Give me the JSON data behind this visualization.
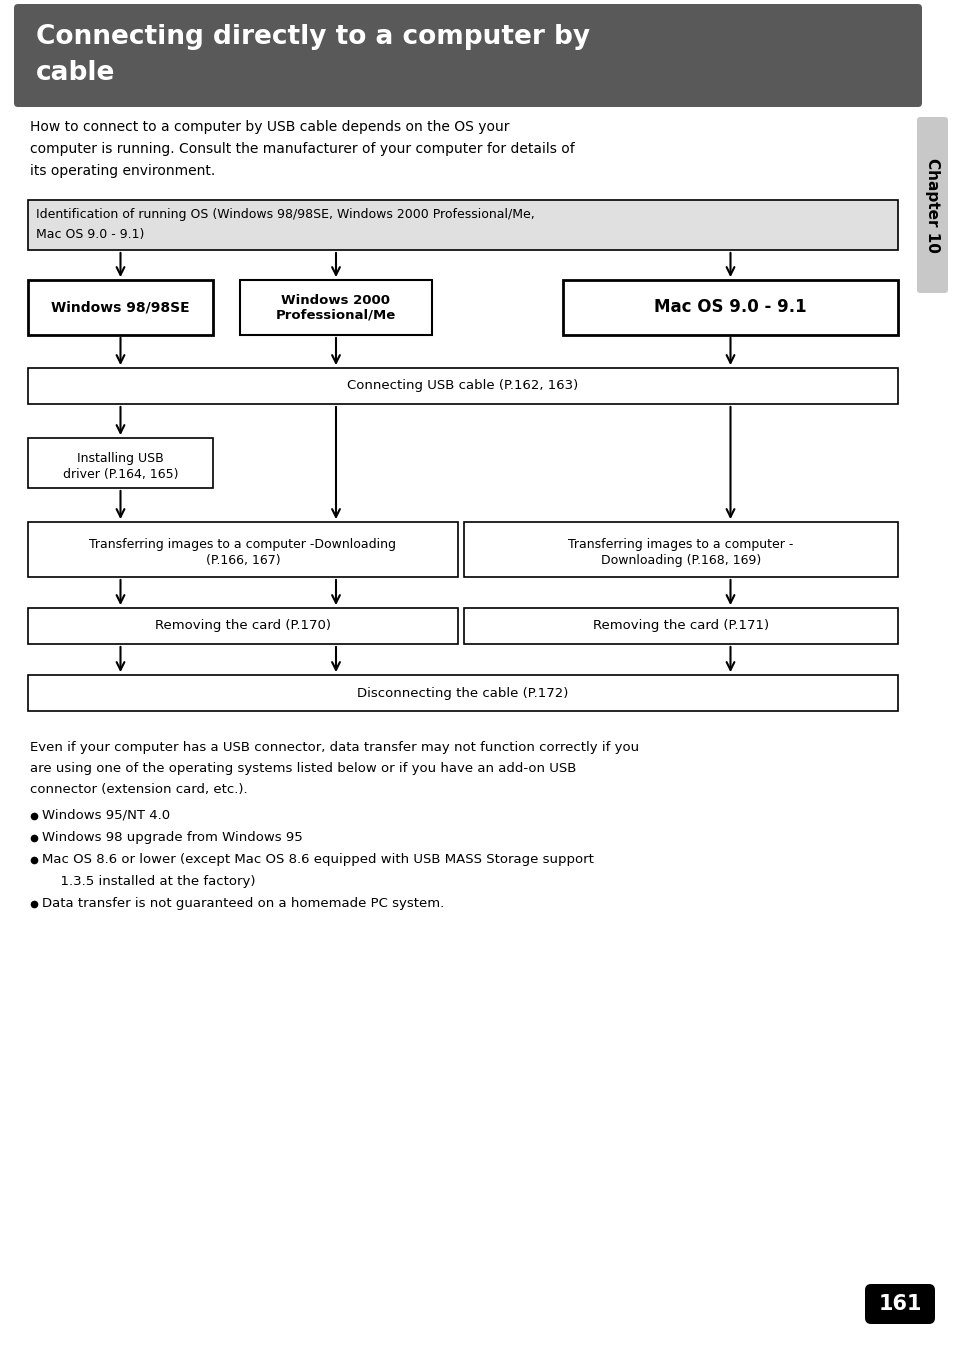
{
  "title_line1": "Connecting directly to a computer by",
  "title_line2": "cable",
  "title_bg": "#595959",
  "title_fg": "#ffffff",
  "page_bg": "#ffffff",
  "intro_line1": "How to connect to a computer by USB cable depends on the OS your",
  "intro_line2": "computer is running. Consult the manufacturer of your computer for details of",
  "intro_line3": "its operating environment.",
  "chapter_label": "Chapter 10",
  "page_number": "161",
  "id_box_line1": "Identification of running OS (Windows 98/98SE, Windows 2000 Professional/Me,",
  "id_box_line2": "Mac OS 9.0 - 9.1)",
  "box_win98": "Windows 98/98SE",
  "box_win2000": "Windows 2000\nProfessional/Me",
  "box_macos": "Mac OS 9.0 - 9.1",
  "box_usb": "Connecting USB cable (P.162, 163)",
  "box_install_line1": "Installing USB",
  "box_install_line2": "driver (P.164, 165)",
  "box_transfer_left_line1": "Transferring images to a computer -Downloading",
  "box_transfer_left_line2": "(P.166, 167)",
  "box_transfer_right_line1": "Transferring images to a computer -",
  "box_transfer_right_line2": "Downloading (P.168, 169)",
  "box_remove_left": "Removing the card (P.170)",
  "box_remove_right": "Removing the card (P.171)",
  "box_disconnect": "Disconnecting the cable (P.172)",
  "footer_line1": "Even if your computer has a USB connector, data transfer may not function correctly if you",
  "footer_line2": "are using one of the operating systems listed below or if you have an add-on USB",
  "footer_line3": "connector (extension card, etc.).",
  "bullet1": "Windows 95/NT 4.0",
  "bullet2": "Windows 98 upgrade from Windows 95",
  "bullet3a": "Mac OS 8.6 or lower (except Mac OS 8.6 equipped with USB MASS Storage support",
  "bullet3b": "  1.3.5 installed at the factory)",
  "bullet4": "Data transfer is not guaranteed on a homemade PC system."
}
